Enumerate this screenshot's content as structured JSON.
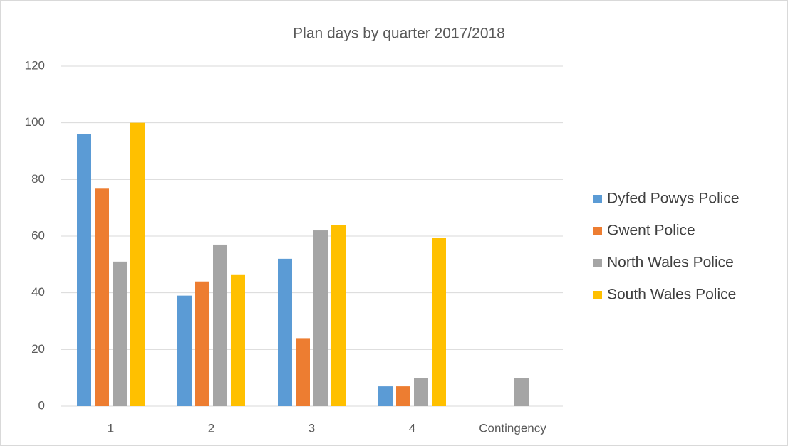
{
  "chart_data": {
    "type": "bar",
    "title": "Plan days by quarter 2017/2018",
    "categories": [
      "1",
      "2",
      "3",
      "4",
      "Contingency"
    ],
    "series": [
      {
        "name": "Dyfed Powys Police",
        "color": "#5b9bd5",
        "values": [
          96,
          39,
          52,
          7,
          null
        ]
      },
      {
        "name": "Gwent Police",
        "color": "#ed7d31",
        "values": [
          77,
          44,
          24,
          7,
          null
        ]
      },
      {
        "name": "North Wales Police",
        "color": "#a5a5a5",
        "values": [
          51,
          57,
          62,
          10,
          10
        ]
      },
      {
        "name": "South Wales Police",
        "color": "#ffc000",
        "values": [
          100,
          46.5,
          64,
          59.5,
          null
        ]
      }
    ],
    "ylim": [
      0,
      120
    ],
    "yticks": [
      0,
      20,
      40,
      60,
      80,
      100,
      120
    ],
    "grid": true,
    "legend": "right"
  }
}
